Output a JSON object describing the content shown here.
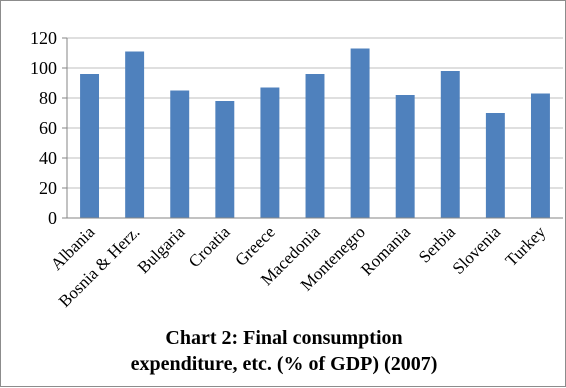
{
  "chart_data": {
    "type": "bar",
    "title": "Chart 2: Final consumption\nexpenditure, etc. (% of GDP) (2007)",
    "categories": [
      "Albania",
      "Bosnia & Herz.",
      "Bulgaria",
      "Croatia",
      "Greece",
      "Macedonia",
      "Montenegro",
      "Romania",
      "Serbia",
      "Slovenia",
      "Turkey"
    ],
    "values": [
      96,
      111,
      85,
      78,
      87,
      96,
      113,
      82,
      98,
      70,
      83
    ],
    "ylim": [
      0,
      120
    ],
    "yticks": [
      "0",
      "20",
      "40",
      "60",
      "80",
      "100",
      "120"
    ],
    "grid": true,
    "legend": "none",
    "xlabel": "",
    "ylabel": "",
    "colors": {
      "bar": "#4f81bd",
      "grid": "#bfbfbf",
      "axis": "#868686"
    }
  }
}
